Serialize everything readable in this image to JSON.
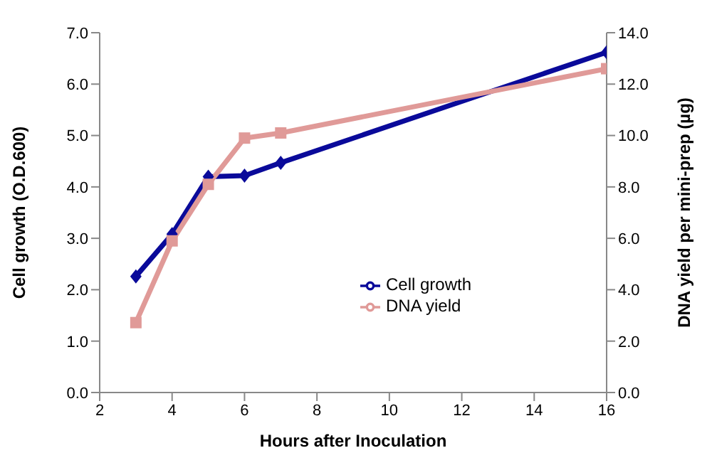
{
  "chart_data": {
    "type": "line",
    "xlabel": "Hours after Inoculation",
    "ylabel": "Cell growth (O.D.600)",
    "y2label": "DNA yield per mini-prep (µg)",
    "x": [
      3,
      4,
      5,
      6,
      7,
      16
    ],
    "series": [
      {
        "name": "Cell growth",
        "color": "#0a0a9a",
        "marker": "diamond",
        "values": [
          2.26,
          3.08,
          4.2,
          4.22,
          4.47,
          6.62
        ]
      },
      {
        "name": "DNA yield",
        "color": "#e09a98",
        "marker": "square",
        "axis": "y2",
        "values": [
          2.72,
          5.9,
          8.1,
          9.9,
          10.1,
          12.6
        ]
      }
    ],
    "xlim": [
      2,
      16
    ],
    "xticks": [
      2,
      4,
      6,
      8,
      10,
      12,
      14,
      16
    ],
    "ylim": [
      0,
      7
    ],
    "yticks": [
      {
        "value": 0,
        "label": "0.0"
      },
      {
        "value": 1,
        "label": "1.0"
      },
      {
        "value": 2,
        "label": "2.0"
      },
      {
        "value": 3,
        "label": "3.0"
      },
      {
        "value": 4,
        "label": "4.0"
      },
      {
        "value": 5,
        "label": "5.0"
      },
      {
        "value": 6,
        "label": "6.0"
      },
      {
        "value": 7,
        "label": "7.0"
      }
    ],
    "y2lim": [
      0,
      14
    ],
    "y2ticks": [
      {
        "value": 0,
        "label": "0.0"
      },
      {
        "value": 2,
        "label": "2.0"
      },
      {
        "value": 4,
        "label": "4.0"
      },
      {
        "value": 6,
        "label": "6.0"
      },
      {
        "value": 8,
        "label": "8.0"
      },
      {
        "value": 10,
        "label": "10.0"
      },
      {
        "value": 12,
        "label": "12.0"
      },
      {
        "value": 14,
        "label": "14.0"
      }
    ],
    "grid": false,
    "legend": "right"
  }
}
